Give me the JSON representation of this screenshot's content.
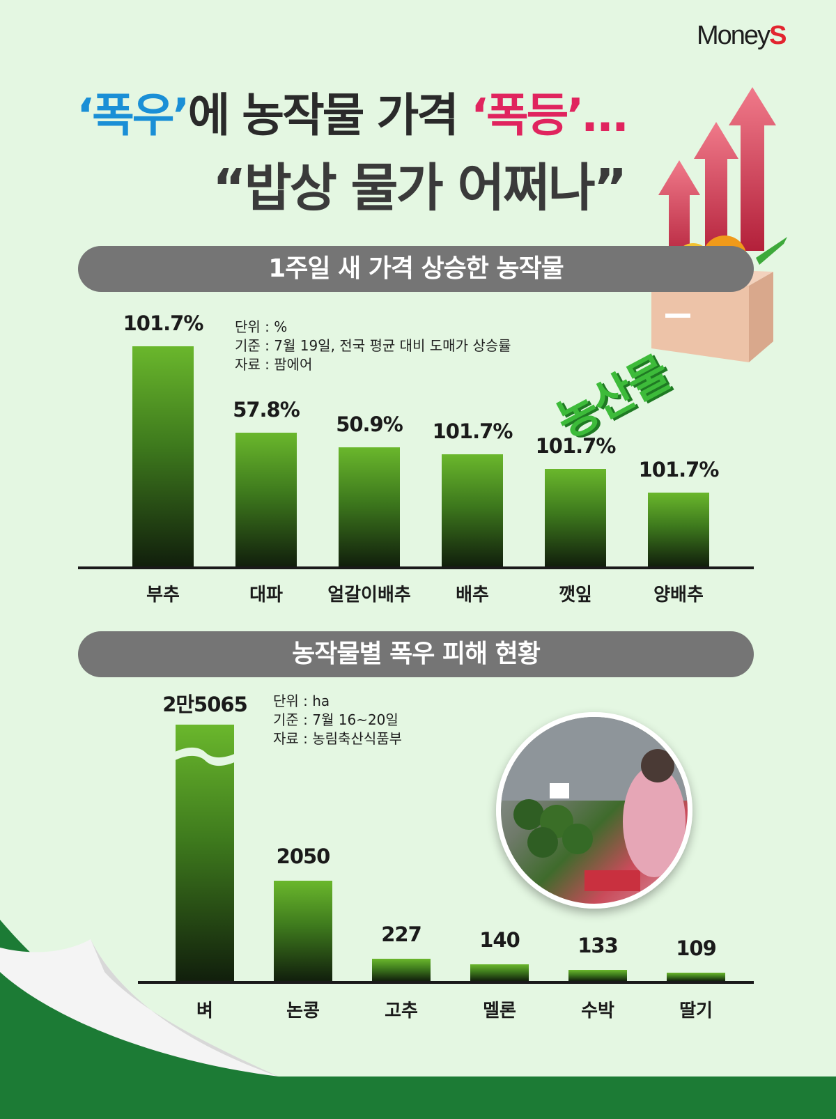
{
  "brand": {
    "name": "Money",
    "suffix": "S"
  },
  "headline": {
    "line1": {
      "q_open": "‘",
      "rain": "폭우",
      "q_close": "’",
      "mid": "에 농작물 가격 ",
      "q2_open": "‘",
      "surge": "폭등",
      "q2_close": "’…"
    },
    "line2": "“밥상 물가 어쩌나”"
  },
  "colors": {
    "rain": "#1a8fd6",
    "surge": "#e0245e",
    "bar_top": "#6ab72c",
    "band": "#757575",
    "footer": "#1c7b35"
  },
  "section1": {
    "title": "1주일 새 가격 상승한 농작물",
    "notes": [
      "단위 : %",
      "기준 : 7월 19일, 전국 평균 대비 도매가 상승률",
      "자료 : 팜에어"
    ]
  },
  "section2": {
    "title": "농작물별 폭우 피해 현황",
    "notes": [
      "단위 : ha",
      "기준 : 7월 16~20일",
      "자료 : 농림축산식품부"
    ]
  },
  "badge_text": "농산물",
  "chart_data": [
    {
      "type": "bar",
      "title": "1주일 새 가격 상승한 농작물",
      "unit": "%",
      "categories": [
        "부추",
        "대파",
        "얼갈이배추",
        "배추",
        "깻잎",
        "양배추"
      ],
      "values": [
        101.7,
        57.8,
        50.9,
        101.7,
        101.7,
        101.7
      ],
      "labels": [
        "101.7%",
        "57.8%",
        "50.9%",
        "101.7%",
        "101.7%",
        "101.7%"
      ],
      "grid": false,
      "legend": "none"
    },
    {
      "type": "bar",
      "title": "농작물별 폭우 피해 현황",
      "unit": "ha",
      "categories": [
        "벼",
        "논콩",
        "고추",
        "멜론",
        "수박",
        "딸기"
      ],
      "values": [
        25065,
        2050,
        227,
        140,
        133,
        109
      ],
      "labels": [
        "2만5065",
        "2050",
        "227",
        "140",
        "133",
        "109"
      ],
      "broken_axis": true,
      "grid": false,
      "legend": "none"
    }
  ]
}
